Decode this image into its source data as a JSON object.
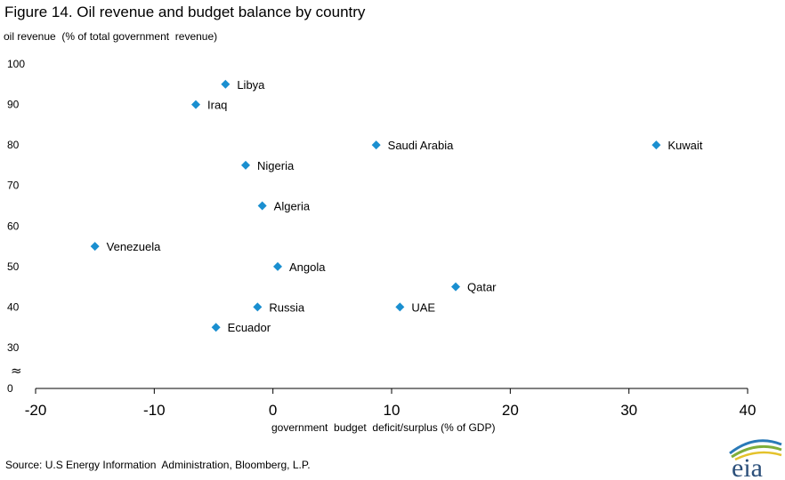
{
  "title": "Figure 14. Oil revenue and budget balance by country",
  "source": "Source: U.S Energy Information  Administration, Bloomberg, L.P.",
  "logo_text": "eia",
  "colors": {
    "marker": "#1a8fd0",
    "axis": "#000000"
  },
  "chart_data": {
    "type": "scatter",
    "title": "Figure 14. Oil revenue and budget balance by country",
    "xlabel": "government  budget  deficit/surplus (% of GDP)",
    "ylabel": "oil revenue  (% of total government  revenue)",
    "xlim": [
      -20,
      40
    ],
    "ylim_broken": {
      "lower": 0,
      "upper_range": [
        30,
        100
      ],
      "break_symbol": "≈"
    },
    "x_ticks": [
      "-20",
      "-10",
      "0",
      "10",
      "20",
      "30",
      "40"
    ],
    "y_ticks": [
      "0",
      "30",
      "40",
      "50",
      "60",
      "70",
      "80",
      "90",
      "100"
    ],
    "grid": false,
    "points": [
      {
        "label": "Libya",
        "x": -4,
        "y": 95
      },
      {
        "label": "Iraq",
        "x": -6.5,
        "y": 90
      },
      {
        "label": "Saudi Arabia",
        "x": 8.7,
        "y": 80
      },
      {
        "label": "Kuwait",
        "x": 32.3,
        "y": 80
      },
      {
        "label": "Nigeria",
        "x": -2.3,
        "y": 75
      },
      {
        "label": "Algeria",
        "x": -0.9,
        "y": 65
      },
      {
        "label": "Venezuela",
        "x": -15,
        "y": 55
      },
      {
        "label": "Angola",
        "x": 0.4,
        "y": 50
      },
      {
        "label": "Qatar",
        "x": 15.4,
        "y": 45
      },
      {
        "label": "Russia",
        "x": -1.3,
        "y": 40
      },
      {
        "label": "UAE",
        "x": 10.7,
        "y": 40
      },
      {
        "label": "Ecuador",
        "x": -4.8,
        "y": 35
      }
    ]
  }
}
